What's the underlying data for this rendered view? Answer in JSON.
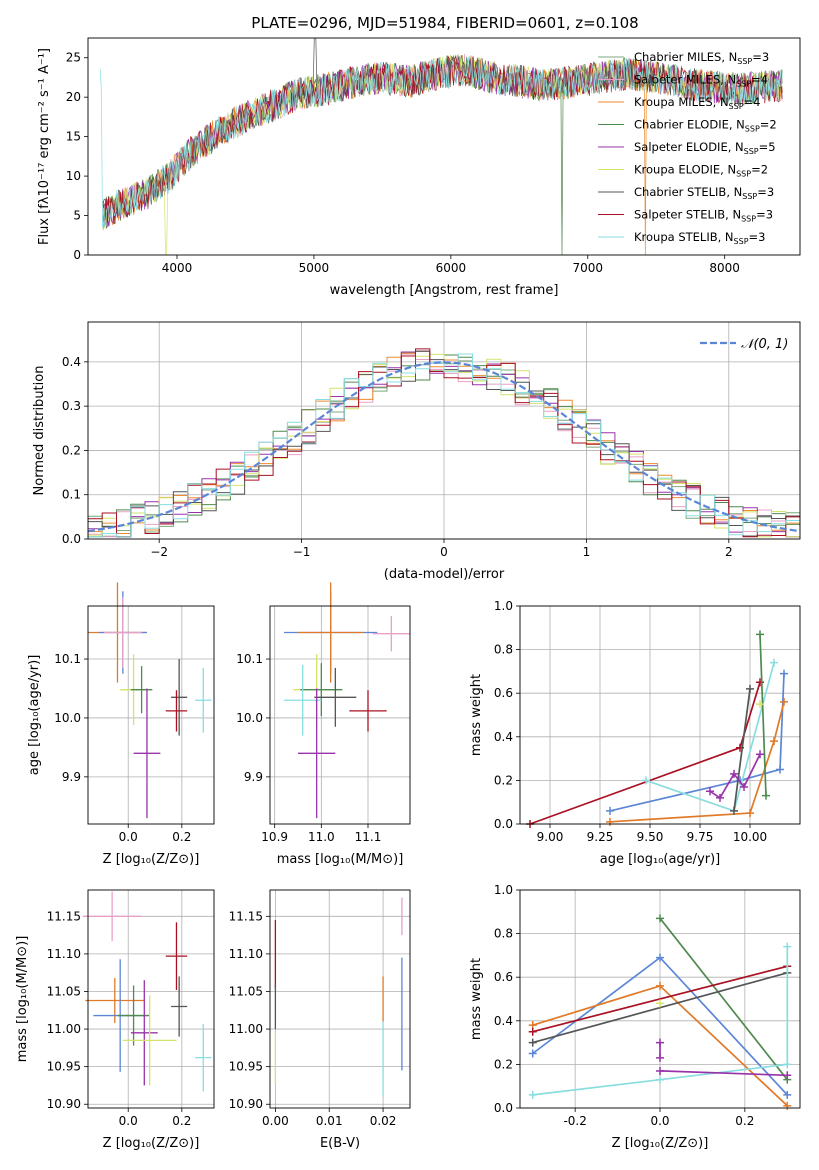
{
  "figure_title": "PLATE=0296, MJD=51984, FIBERID=0601, z=0.108",
  "colors": {
    "chabrier_miles": "#7da87d",
    "salpeter_miles": "#e9a0c8",
    "kroupa_miles": "#ee8a2e",
    "chabrier_elodie": "#4f8a4f",
    "salpeter_elodie": "#9933aa",
    "kroupa_elodie": "#d4e36a",
    "chabrier_stelib": "#555555",
    "salpeter_stelib": "#aa1122",
    "kroupa_stelib": "#88dde0",
    "blue": "#5b86d6",
    "orange": "#e07a28",
    "gray": "#777777"
  },
  "chart_data": [
    {
      "type": "line",
      "panel": "spectrum",
      "xlabel": "wavelength [Angstrom, rest frame]",
      "ylabel": "Flux [fλ10⁻¹⁷ erg cm⁻² s⁻¹ A⁻¹]",
      "xlim": [
        3350,
        8550
      ],
      "ylim": [
        0,
        27.5
      ],
      "xticks": [
        4000,
        5000,
        6000,
        7000,
        8000
      ],
      "yticks": [
        0,
        5,
        10,
        15,
        20,
        25
      ],
      "legend": "top-right",
      "series": [
        {
          "name": "Chabrier MILES, N_SSP=3",
          "color": "chabrier_miles"
        },
        {
          "name": "Salpeter MILES, N_SSP=4",
          "color": "salpeter_miles"
        },
        {
          "name": "Kroupa MILES, N_SSP=4",
          "color": "kroupa_miles"
        },
        {
          "name": "Chabrier ELODIE, N_SSP=2",
          "color": "chabrier_elodie"
        },
        {
          "name": "Salpeter ELODIE, N_SSP=5",
          "color": "salpeter_elodie"
        },
        {
          "name": "Kroupa ELODIE, N_SSP=2",
          "color": "kroupa_elodie"
        },
        {
          "name": "Chabrier STELIB, N_SSP=3",
          "color": "chabrier_stelib"
        },
        {
          "name": "Salpeter STELIB, N_SSP=3",
          "color": "salpeter_stelib"
        },
        {
          "name": "Kroupa STELIB, N_SSP=3",
          "color": "kroupa_stelib"
        }
      ],
      "continuum": [
        [
          3450,
          5
        ],
        [
          3600,
          6.5
        ],
        [
          3800,
          8
        ],
        [
          3950,
          10
        ],
        [
          4100,
          13
        ],
        [
          4300,
          15.5
        ],
        [
          4500,
          17.5
        ],
        [
          4700,
          19
        ],
        [
          4900,
          20.5
        ],
        [
          5100,
          21
        ],
        [
          5300,
          22
        ],
        [
          5500,
          22.5
        ],
        [
          5700,
          22
        ],
        [
          5900,
          23
        ],
        [
          6100,
          23.5
        ],
        [
          6300,
          22.5
        ],
        [
          6500,
          22
        ],
        [
          6700,
          21.5
        ],
        [
          6900,
          22
        ],
        [
          7100,
          22.5
        ],
        [
          7300,
          23
        ],
        [
          7500,
          22.5
        ],
        [
          7800,
          21.5
        ],
        [
          8100,
          21
        ],
        [
          8400,
          21.5
        ]
      ]
    },
    {
      "type": "histogram",
      "panel": "residuals",
      "xlabel": "(data-model)/error",
      "ylabel": "Normed distribution",
      "xlim": [
        -2.5,
        2.5
      ],
      "ylim": [
        0,
        0.49
      ],
      "xticks": [
        -2,
        -1,
        0,
        1,
        2
      ],
      "yticks": [
        0,
        0.1,
        0.2,
        0.3,
        0.4
      ],
      "reference": {
        "name": "𝒩(0, 1)",
        "color": "blue"
      },
      "bin_width": 0.1
    },
    {
      "type": "scatter",
      "panel": "age_vs_Z",
      "xlabel": "Z [log₁₀(Z/Z⊙)]",
      "ylabel": "age  [log₁₀(age/yr)]",
      "xlim": [
        -0.15,
        0.32
      ],
      "ylim": [
        9.82,
        10.19
      ],
      "xticks": [
        0.0,
        0.2
      ],
      "yticks": [
        9.9,
        10.0,
        10.1
      ],
      "points": [
        {
          "x": -0.04,
          "y": 10.145,
          "xerr": 0.11,
          "yerr": 0.085,
          "color": "orange"
        },
        {
          "x": -0.02,
          "y": 10.145,
          "xerr": 0.09,
          "yerr": 0.07,
          "color": "blue"
        },
        {
          "x": -0.02,
          "y": 10.145,
          "xerr": 0.07,
          "yerr": 0.06,
          "color": "salpeter_miles"
        },
        {
          "x": 0.02,
          "y": 10.048,
          "xerr": 0.05,
          "yerr": 0.06,
          "color": "kroupa_elodie"
        },
        {
          "x": 0.05,
          "y": 10.048,
          "xerr": 0.04,
          "yerr": 0.04,
          "color": "chabrier_elodie"
        },
        {
          "x": 0.07,
          "y": 9.94,
          "xerr": 0.05,
          "yerr": 0.11,
          "color": "salpeter_elodie"
        },
        {
          "x": 0.19,
          "y": 10.035,
          "xerr": 0.03,
          "yerr": 0.065,
          "color": "chabrier_stelib"
        },
        {
          "x": 0.18,
          "y": 10.012,
          "xerr": 0.04,
          "yerr": 0.035,
          "color": "salpeter_stelib"
        },
        {
          "x": 0.28,
          "y": 10.03,
          "xerr": 0.03,
          "yerr": 0.055,
          "color": "kroupa_stelib"
        }
      ]
    },
    {
      "type": "scatter",
      "panel": "age_vs_mass",
      "xlabel": "mass [log₁₀(M/M⊙)]",
      "ylabel": "",
      "xlim": [
        10.89,
        11.19
      ],
      "ylim": [
        9.82,
        10.19
      ],
      "xticks": [
        10.9,
        11.0,
        11.1
      ],
      "yticks": [
        9.9,
        10.0,
        10.1
      ],
      "points": [
        {
          "x": 11.02,
          "y": 10.145,
          "xerr": 0.1,
          "yerr": 0.07,
          "color": "blue"
        },
        {
          "x": 11.02,
          "y": 10.145,
          "xerr": 0.07,
          "yerr": 0.085,
          "color": "orange"
        },
        {
          "x": 11.15,
          "y": 10.143,
          "xerr": 0.04,
          "yerr": 0.03,
          "color": "salpeter_miles"
        },
        {
          "x": 10.99,
          "y": 10.048,
          "xerr": 0.05,
          "yerr": 0.06,
          "color": "kroupa_elodie"
        },
        {
          "x": 11.0,
          "y": 10.048,
          "xerr": 0.045,
          "yerr": 0.045,
          "color": "chabrier_elodie"
        },
        {
          "x": 11.03,
          "y": 10.035,
          "xerr": 0.045,
          "yerr": 0.05,
          "color": "chabrier_stelib"
        },
        {
          "x": 10.96,
          "y": 10.03,
          "xerr": 0.04,
          "yerr": 0.06,
          "color": "kroupa_stelib"
        },
        {
          "x": 10.99,
          "y": 9.94,
          "xerr": 0.04,
          "yerr": 0.11,
          "color": "salpeter_elodie"
        },
        {
          "x": 11.1,
          "y": 10.012,
          "xerr": 0.04,
          "yerr": 0.035,
          "color": "salpeter_stelib"
        }
      ]
    },
    {
      "type": "line",
      "panel": "massweight_vs_age",
      "xlabel": "age  [log₁₀(age/yr)]",
      "ylabel": "mass weight",
      "xlim": [
        8.85,
        10.25
      ],
      "ylim": [
        0,
        1.0
      ],
      "xticks": [
        9.0,
        9.25,
        9.5,
        9.75,
        10.0
      ],
      "yticks": [
        0.0,
        0.2,
        0.4,
        0.6,
        0.8,
        1.0
      ],
      "series": [
        {
          "color": "salpeter_stelib",
          "points": [
            [
              8.9,
              0.0
            ],
            [
              9.95,
              0.35
            ],
            [
              10.05,
              0.65
            ]
          ]
        },
        {
          "color": "blue",
          "points": [
            [
              9.3,
              0.06
            ],
            [
              9.95,
              0.2
            ],
            [
              10.15,
              0.25
            ],
            [
              10.17,
              0.69
            ]
          ]
        },
        {
          "color": "orange",
          "points": [
            [
              9.3,
              0.01
            ],
            [
              10.0,
              0.05
            ],
            [
              10.12,
              0.38
            ],
            [
              10.17,
              0.56
            ]
          ]
        },
        {
          "color": "kroupa_stelib",
          "points": [
            [
              9.48,
              0.2
            ],
            [
              9.92,
              0.06
            ],
            [
              10.12,
              0.74
            ]
          ]
        },
        {
          "color": "chabrier_elodie",
          "points": [
            [
              10.05,
              0.87
            ],
            [
              10.08,
              0.13
            ]
          ]
        },
        {
          "color": "chabrier_stelib",
          "points": [
            [
              9.92,
              0.06
            ],
            [
              10.0,
              0.62
            ]
          ]
        },
        {
          "color": "salpeter_elodie",
          "points": [
            [
              9.8,
              0.15
            ],
            [
              9.85,
              0.12
            ],
            [
              9.92,
              0.23
            ],
            [
              9.97,
              0.17
            ],
            [
              10.05,
              0.32
            ]
          ]
        },
        {
          "color": "kroupa_elodie",
          "points": [
            [
              10.05,
              0.55
            ]
          ]
        }
      ]
    },
    {
      "type": "scatter",
      "panel": "mass_vs_Z",
      "xlabel": "Z [log₁₀(Z/Z⊙)]",
      "ylabel": "mass [log₁₀(M/M⊙)]",
      "xlim": [
        -0.15,
        0.32
      ],
      "ylim": [
        10.895,
        11.185
      ],
      "xticks": [
        0.0,
        0.2
      ],
      "yticks": [
        10.9,
        10.95,
        11.0,
        11.05,
        11.1,
        11.15
      ],
      "points": [
        {
          "x": -0.06,
          "y": 11.15,
          "xerr": 0.11,
          "yerr": 0.033,
          "color": "salpeter_miles"
        },
        {
          "x": 0.18,
          "y": 11.097,
          "xerr": 0.04,
          "yerr": 0.045,
          "color": "salpeter_stelib"
        },
        {
          "x": -0.05,
          "y": 11.038,
          "xerr": 0.11,
          "yerr": 0.03,
          "color": "orange"
        },
        {
          "x": -0.03,
          "y": 11.018,
          "xerr": 0.1,
          "yerr": 0.075,
          "color": "blue"
        },
        {
          "x": 0.02,
          "y": 11.018,
          "xerr": 0.06,
          "yerr": 0.04,
          "color": "chabrier_elodie"
        },
        {
          "x": 0.19,
          "y": 11.03,
          "xerr": 0.03,
          "yerr": 0.04,
          "color": "chabrier_stelib"
        },
        {
          "x": 0.06,
          "y": 10.995,
          "xerr": 0.05,
          "yerr": 0.07,
          "color": "salpeter_elodie"
        },
        {
          "x": 0.08,
          "y": 10.985,
          "xerr": 0.1,
          "yerr": 0.06,
          "color": "kroupa_elodie"
        },
        {
          "x": 0.28,
          "y": 10.962,
          "xerr": 0.03,
          "yerr": 0.045,
          "color": "kroupa_stelib"
        }
      ]
    },
    {
      "type": "scatter",
      "panel": "mass_vs_EBV",
      "xlabel": "E(B-V)",
      "ylabel": "",
      "xlim": [
        -0.001,
        0.025
      ],
      "ylim": [
        10.895,
        11.185
      ],
      "xticks": [
        0.0,
        0.01,
        0.02
      ],
      "yticks": [
        10.9,
        10.95,
        11.0,
        11.05,
        11.1,
        11.15
      ],
      "points": [
        {
          "x": 0.0,
          "y": 11.1,
          "xerr": 0,
          "yerr": 0.045,
          "color": "salpeter_stelib"
        },
        {
          "x": 0.0,
          "y": 11.03,
          "xerr": 0,
          "yerr": 0.03,
          "color": "chabrier_stelib"
        },
        {
          "x": 0.0,
          "y": 10.96,
          "xerr": 0,
          "yerr": 0.035,
          "color": "kroupa_elodie"
        },
        {
          "x": 0.02,
          "y": 11.04,
          "xerr": 0,
          "yerr": 0.03,
          "color": "orange"
        },
        {
          "x": 0.02,
          "y": 10.96,
          "xerr": 0,
          "yerr": 0.05,
          "color": "kroupa_stelib"
        },
        {
          "x": 0.0235,
          "y": 11.15,
          "xerr": 0,
          "yerr": 0.025,
          "color": "salpeter_miles"
        },
        {
          "x": 0.0235,
          "y": 11.02,
          "xerr": 0,
          "yerr": 0.075,
          "color": "blue"
        }
      ]
    },
    {
      "type": "line",
      "panel": "massweight_vs_Z",
      "xlabel": "Z [log₁₀(Z/Z⊙)]",
      "ylabel": "mass weight",
      "xlim": [
        -0.33,
        0.33
      ],
      "ylim": [
        0,
        1.0
      ],
      "xticks": [
        -0.2,
        0.0,
        0.2
      ],
      "yticks": [
        0.0,
        0.2,
        0.4,
        0.6,
        0.8,
        1.0
      ],
      "series": [
        {
          "color": "chabrier_elodie",
          "points": [
            [
              0.0,
              0.87
            ],
            [
              0.3,
              0.13
            ]
          ]
        },
        {
          "color": "blue",
          "points": [
            [
              -0.3,
              0.25
            ],
            [
              0.0,
              0.69
            ],
            [
              0.3,
              0.06
            ]
          ]
        },
        {
          "color": "orange",
          "points": [
            [
              -0.3,
              0.38
            ],
            [
              0.0,
              0.56
            ],
            [
              0.3,
              0.01
            ]
          ]
        },
        {
          "color": "salpeter_stelib",
          "points": [
            [
              -0.3,
              0.35
            ],
            [
              0.3,
              0.65
            ]
          ]
        },
        {
          "color": "chabrier_stelib",
          "points": [
            [
              -0.3,
              0.3
            ],
            [
              0.3,
              0.62
            ]
          ]
        },
        {
          "color": "kroupa_stelib",
          "points": [
            [
              -0.3,
              0.06
            ],
            [
              0.0,
              0.13
            ],
            [
              0.3,
              0.2
            ],
            [
              0.3,
              0.74
            ]
          ]
        },
        {
          "color": "salpeter_elodie",
          "points": [
            [
              0.0,
              0.17
            ],
            [
              0.3,
              0.15
            ]
          ]
        },
        {
          "color": "kroupa_elodie",
          "points": [
            [
              0.0,
              0.48
            ]
          ]
        },
        {
          "color": "salpeter_elodie",
          "points": [
            [
              0.0,
              0.3
            ],
            [
              0.0,
              0.23
            ]
          ]
        }
      ]
    }
  ]
}
